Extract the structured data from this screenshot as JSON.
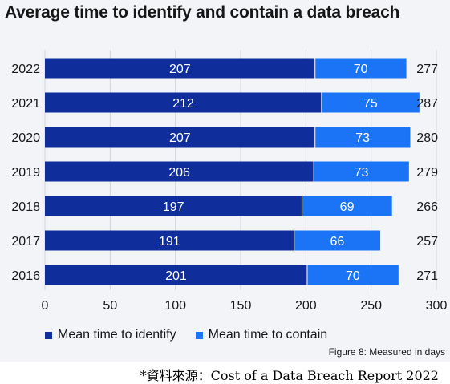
{
  "title": "Average time to identify and contain a data breach",
  "figure_note": "Figure 8: Measured in days",
  "source_note": "*資料來源：Cost of a Data Breach Report 2022",
  "colors": {
    "identify": "#0f2e9b",
    "contain": "#1b74f5",
    "background": "#f2f4f8",
    "grid": "#d0d4da"
  },
  "chart_data": {
    "type": "bar",
    "orientation": "horizontal",
    "stacked": true,
    "title": "Average time to identify and contain a data breach",
    "categories": [
      "2022",
      "2021",
      "2020",
      "2019",
      "2018",
      "2017",
      "2016"
    ],
    "series": [
      {
        "name": "Mean time to identify",
        "values": [
          207,
          212,
          207,
          206,
          197,
          191,
          201
        ]
      },
      {
        "name": "Mean time to contain",
        "values": [
          70,
          75,
          73,
          73,
          69,
          66,
          70
        ]
      }
    ],
    "totals": [
      277,
      287,
      280,
      279,
      266,
      257,
      271
    ],
    "xlim": [
      0,
      300
    ],
    "xticks": [
      0,
      50,
      100,
      150,
      200,
      250,
      300
    ],
    "grid": "vertical",
    "legend_position": "bottom-left",
    "xlabel": "",
    "ylabel": ""
  }
}
